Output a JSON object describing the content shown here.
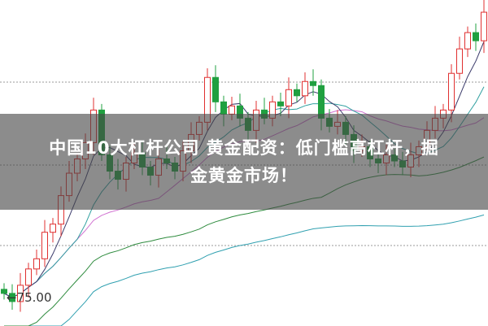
{
  "headline": {
    "line1": "中国10大杠杆公司 黄金配资：低门槛高杠杆，掘",
    "line2": "金黄金市场！"
  },
  "chart_data": {
    "type": "candlestick",
    "annotations": [
      "←75.00"
    ],
    "ylim": [
      74,
      90
    ],
    "grid": true,
    "closes": [
      75.6,
      75.2,
      76.0,
      76.8,
      77.3,
      78.6,
      79.0,
      80.4,
      81.5,
      82.2,
      83.0,
      84.6,
      82.4,
      81.6,
      81.2,
      82.0,
      82.5,
      81.8,
      81.4,
      82.2,
      82.0,
      81.6,
      82.6,
      83.4,
      84.0,
      86.2,
      85.0,
      84.4,
      84.8,
      84.2,
      83.6,
      84.6,
      84.2,
      85.0,
      84.8,
      85.6,
      85.3,
      86.0,
      85.8,
      84.2,
      83.8,
      84.0,
      83.4,
      82.6,
      82.8,
      82.2,
      82.0,
      82.4,
      82.1,
      81.8,
      82.4,
      82.8,
      83.6,
      84.2,
      84.6,
      86.4,
      87.6,
      88.4,
      88.0,
      89.4
    ],
    "colors": {
      "up": "#e03030",
      "down": "#20a040",
      "ma5": "#3a3a6a",
      "ma10": "#30a0a0",
      "ma20": "#d070d0",
      "ma60": "#2e8b3e",
      "ma120": "#30a0b0",
      "grid": "#999999"
    }
  }
}
